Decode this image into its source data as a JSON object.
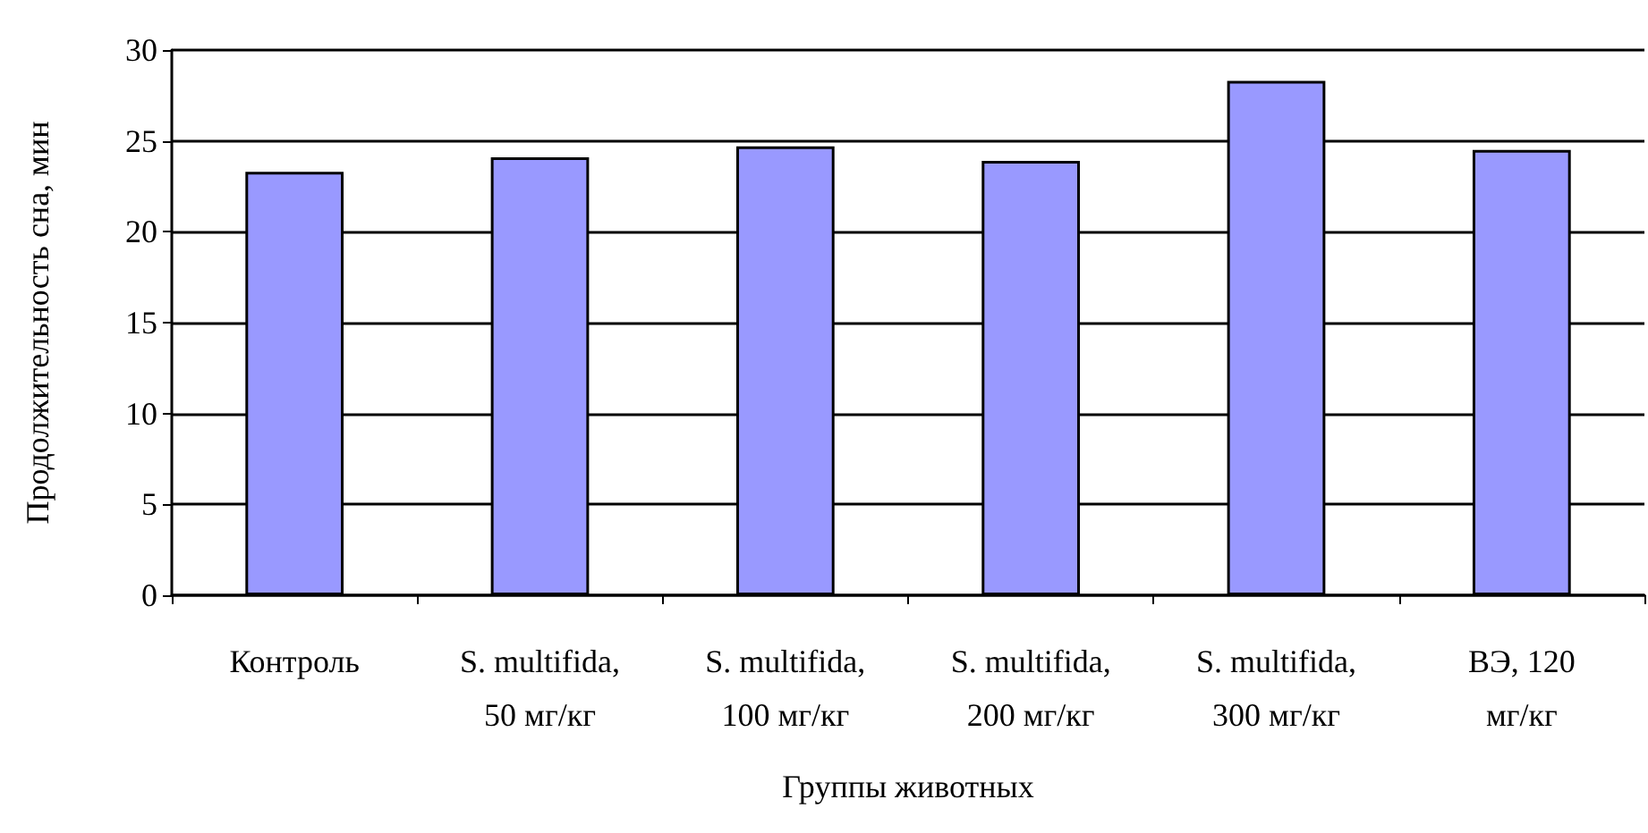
{
  "chart_data": {
    "type": "bar",
    "xlabel": "Группы животных",
    "ylabel": "Продолжительность сна, мин",
    "categories": [
      "Контроль",
      "S. multifida,\n50 мг/кг",
      "S. multifida,\n100 мг/кг",
      "S. multifida,\n200 мг/кг",
      "S. multifida,\n300 мг/кг",
      "ВЭ, 120\nмг/кг"
    ],
    "values": [
      23.3,
      24.1,
      24.7,
      23.9,
      28.3,
      24.5
    ],
    "color": "#9999ff",
    "ylim": [
      0,
      30
    ],
    "yticks": [
      0,
      5,
      10,
      15,
      20,
      25,
      30
    ],
    "grid": "y"
  }
}
